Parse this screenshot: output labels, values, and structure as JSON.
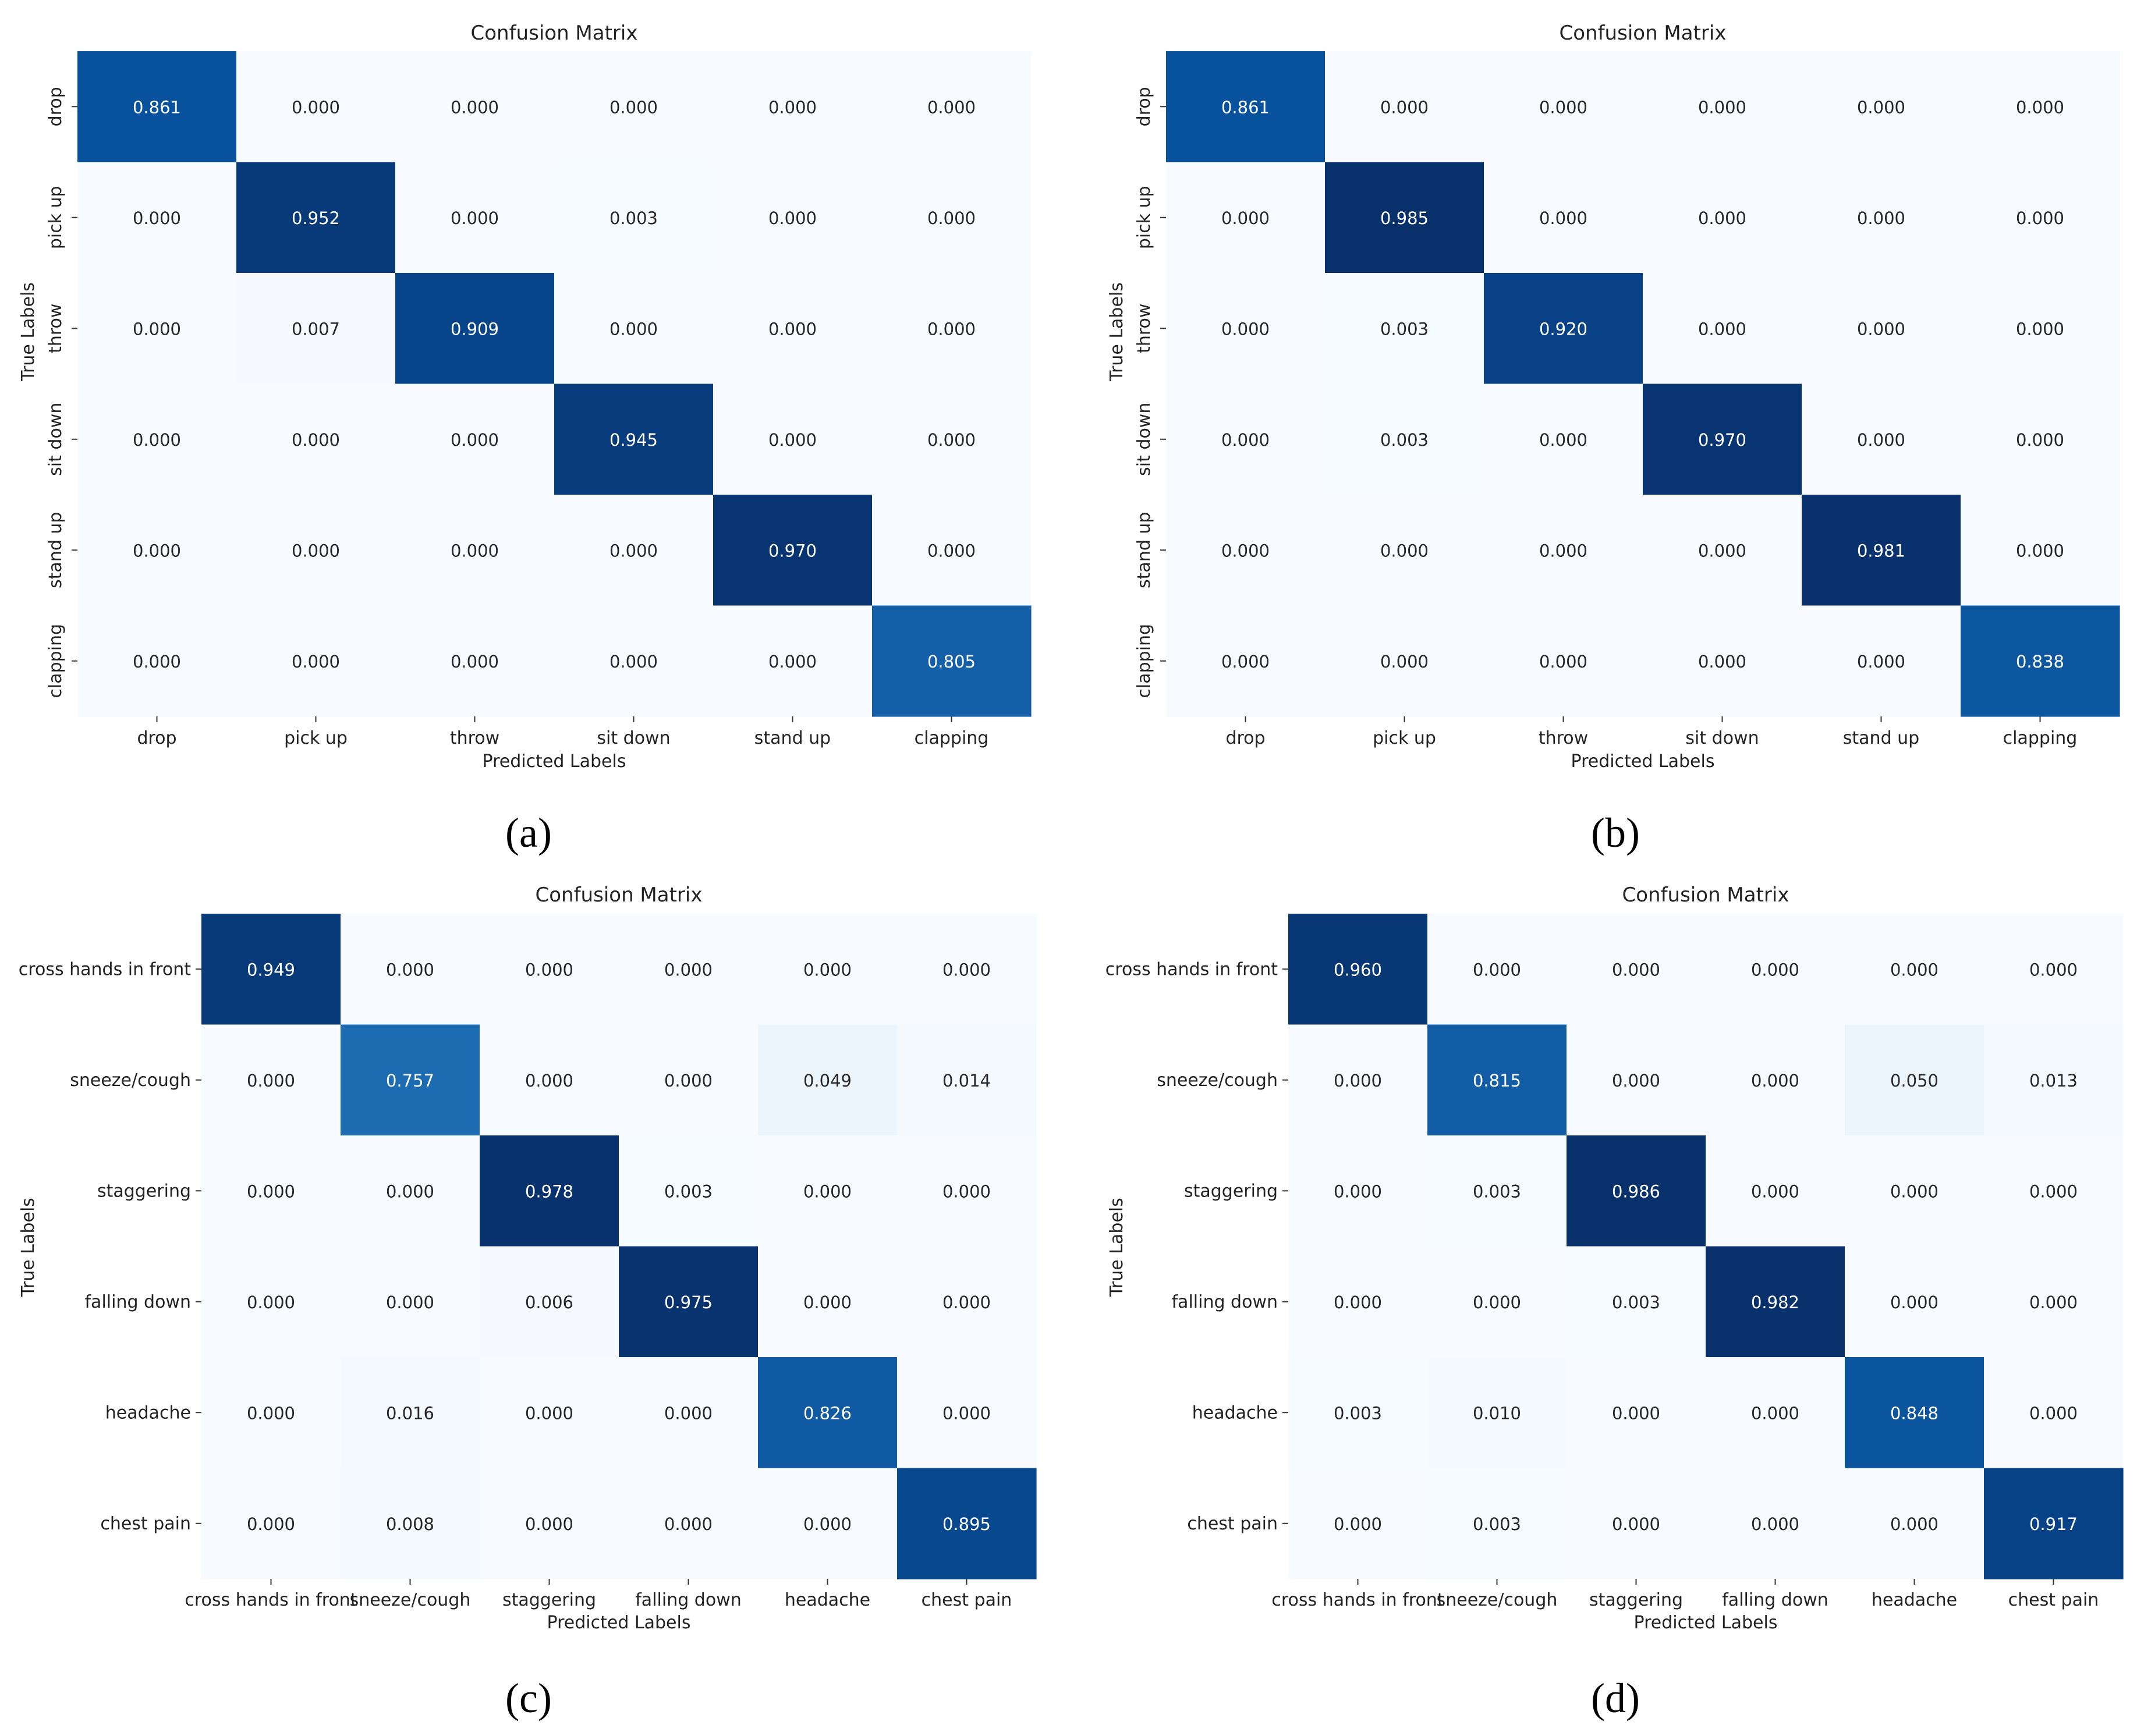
{
  "figure": {
    "captions": [
      "(a)",
      "(b)",
      "(c)",
      "(d)"
    ]
  },
  "chart_data": [
    {
      "type": "heatmap",
      "panel": "(a)",
      "title": "Confusion Matrix",
      "xlabel": "Predicted Labels",
      "ylabel": "True Labels",
      "ytick_rotation": "vertical",
      "x_categories": [
        "drop",
        "pick up",
        "throw",
        "sit down",
        "stand up",
        "clapping"
      ],
      "y_categories": [
        "drop",
        "pick up",
        "throw",
        "sit down",
        "stand up",
        "clapping"
      ],
      "values": [
        [
          "0.861",
          "0.000",
          "0.000",
          "0.000",
          "0.000",
          "0.000"
        ],
        [
          "0.000",
          "0.952",
          "0.000",
          "0.003",
          "0.000",
          "0.000"
        ],
        [
          "0.000",
          "0.007",
          "0.909",
          "0.000",
          "0.000",
          "0.000"
        ],
        [
          "0.000",
          "0.000",
          "0.000",
          "0.945",
          "0.000",
          "0.000"
        ],
        [
          "0.000",
          "0.000",
          "0.000",
          "0.000",
          "0.970",
          "0.000"
        ],
        [
          "0.000",
          "0.000",
          "0.000",
          "0.000",
          "0.000",
          "0.805"
        ]
      ],
      "colormap": "Blues",
      "vmin": 0,
      "vmax": 0.985
    },
    {
      "type": "heatmap",
      "panel": "(b)",
      "title": "Confusion Matrix",
      "xlabel": "Predicted Labels",
      "ylabel": "True Labels",
      "ytick_rotation": "vertical",
      "x_categories": [
        "drop",
        "pick up",
        "throw",
        "sit down",
        "stand up",
        "clapping"
      ],
      "y_categories": [
        "drop",
        "pick up",
        "throw",
        "sit down",
        "stand up",
        "clapping"
      ],
      "values": [
        [
          "0.861",
          "0.000",
          "0.000",
          "0.000",
          "0.000",
          "0.000"
        ],
        [
          "0.000",
          "0.985",
          "0.000",
          "0.000",
          "0.000",
          "0.000"
        ],
        [
          "0.000",
          "0.003",
          "0.920",
          "0.000",
          "0.000",
          "0.000"
        ],
        [
          "0.000",
          "0.003",
          "0.000",
          "0.970",
          "0.000",
          "0.000"
        ],
        [
          "0.000",
          "0.000",
          "0.000",
          "0.000",
          "0.981",
          "0.000"
        ],
        [
          "0.000",
          "0.000",
          "0.000",
          "0.000",
          "0.000",
          "0.838"
        ]
      ],
      "colormap": "Blues",
      "vmin": 0,
      "vmax": 0.985
    },
    {
      "type": "heatmap",
      "panel": "(c)",
      "title": "Confusion Matrix",
      "xlabel": "Predicted Labels",
      "ylabel": "True Labels",
      "ytick_rotation": "horizontal",
      "x_categories": [
        "cross hands in front",
        "sneeze/cough",
        "staggering",
        "falling down",
        "headache",
        "chest pain"
      ],
      "y_categories": [
        "cross hands in front",
        "sneeze/cough",
        "staggering",
        "falling down",
        "headache",
        "chest pain"
      ],
      "values": [
        [
          "0.949",
          "0.000",
          "0.000",
          "0.000",
          "0.000",
          "0.000"
        ],
        [
          "0.000",
          "0.757",
          "0.000",
          "0.000",
          "0.049",
          "0.014"
        ],
        [
          "0.000",
          "0.000",
          "0.978",
          "0.003",
          "0.000",
          "0.000"
        ],
        [
          "0.000",
          "0.000",
          "0.006",
          "0.975",
          "0.000",
          "0.000"
        ],
        [
          "0.000",
          "0.016",
          "0.000",
          "0.000",
          "0.826",
          "0.000"
        ],
        [
          "0.000",
          "0.008",
          "0.000",
          "0.000",
          "0.000",
          "0.895"
        ]
      ],
      "colormap": "Blues",
      "vmin": 0,
      "vmax": 0.985
    },
    {
      "type": "heatmap",
      "panel": "(d)",
      "title": "Confusion Matrix",
      "xlabel": "Predicted Labels",
      "ylabel": "True Labels",
      "ytick_rotation": "horizontal",
      "x_categories": [
        "cross hands in front",
        "sneeze/cough",
        "staggering",
        "falling down",
        "headache",
        "chest pain"
      ],
      "y_categories": [
        "cross hands in front",
        "sneeze/cough",
        "staggering",
        "falling down",
        "headache",
        "chest pain"
      ],
      "values": [
        [
          "0.960",
          "0.000",
          "0.000",
          "0.000",
          "0.000",
          "0.000"
        ],
        [
          "0.000",
          "0.815",
          "0.000",
          "0.000",
          "0.050",
          "0.013"
        ],
        [
          "0.000",
          "0.003",
          "0.986",
          "0.000",
          "0.000",
          "0.000"
        ],
        [
          "0.000",
          "0.000",
          "0.003",
          "0.982",
          "0.000",
          "0.000"
        ],
        [
          "0.003",
          "0.010",
          "0.000",
          "0.000",
          "0.848",
          "0.000"
        ],
        [
          "0.000",
          "0.003",
          "0.000",
          "0.000",
          "0.000",
          "0.917"
        ]
      ],
      "colormap": "Blues",
      "vmin": 0,
      "vmax": 0.985
    }
  ]
}
